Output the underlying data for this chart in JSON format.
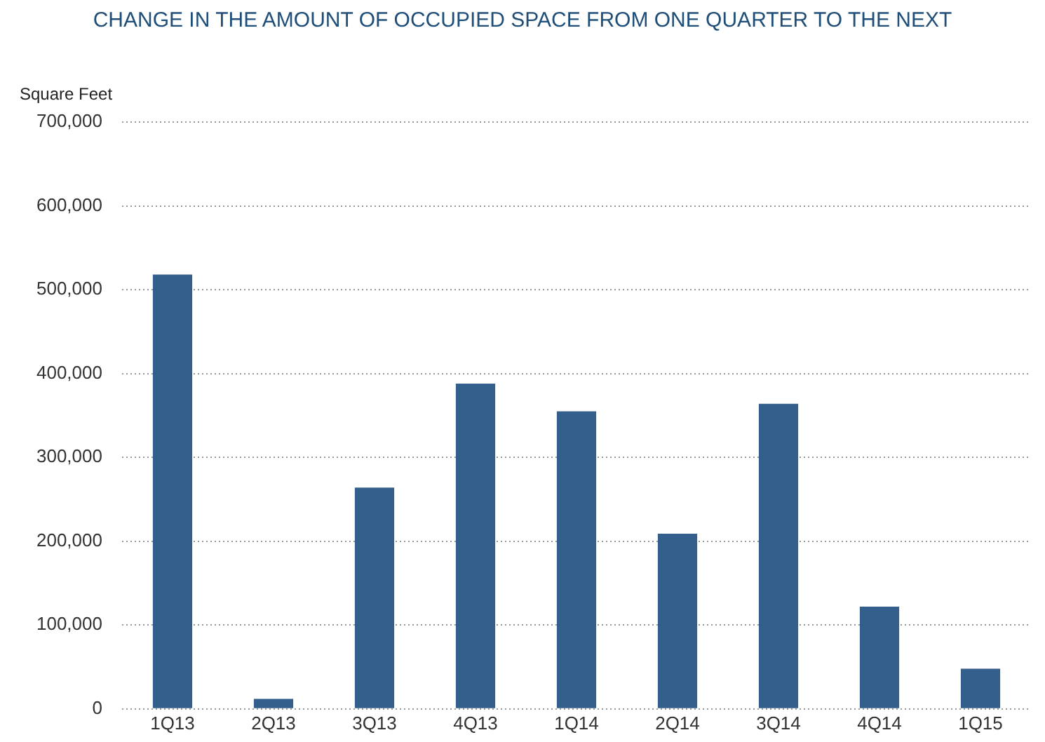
{
  "chart_data": {
    "type": "bar",
    "title": "CHANGE IN THE AMOUNT OF OCCUPIED SPACE FROM ONE QUARTER TO THE NEXT",
    "ylabel": "Square Feet",
    "categories": [
      "1Q13",
      "2Q13",
      "3Q13",
      "4Q13",
      "1Q14",
      "2Q14",
      "3Q14",
      "4Q14",
      "1Q15"
    ],
    "values": [
      518000,
      12000,
      264000,
      388000,
      355000,
      209000,
      364000,
      122000,
      48000
    ],
    "color": "#345f8c",
    "ylim": [
      0,
      700000
    ],
    "yticks": [
      {
        "value": 0,
        "label": "0"
      },
      {
        "value": 100000,
        "label": "100,000"
      },
      {
        "value": 200000,
        "label": "200,000"
      },
      {
        "value": 300000,
        "label": "300,000"
      },
      {
        "value": 400000,
        "label": "400,000"
      },
      {
        "value": 500000,
        "label": "500,000"
      },
      {
        "value": 600000,
        "label": "600,000"
      },
      {
        "value": 700000,
        "label": "700,000"
      }
    ],
    "grid": "y",
    "legend": false
  }
}
